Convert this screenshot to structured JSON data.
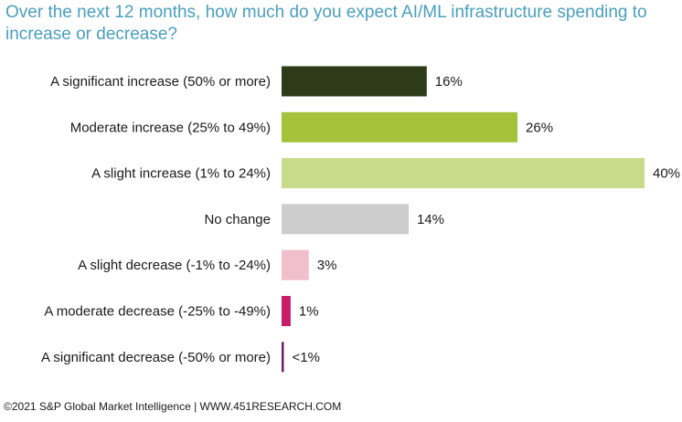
{
  "chart_data": {
    "type": "bar",
    "orientation": "horizontal",
    "title": "Over the next 12 months, how much do you expect AI/ML infrastructure spending to increase or decrease?",
    "xlabel": "",
    "ylabel": "",
    "xlim": [
      0,
      40
    ],
    "categories": [
      "A significant increase (50% or more)",
      "Moderate increase (25% to 49%)",
      "A slight increase (1% to 24%)",
      "No change",
      "A slight decrease (-1% to -24%)",
      "A moderate decrease (-25% to -49%)",
      "A significant decrease (-50% or more)"
    ],
    "values": [
      16,
      26,
      40,
      14,
      3,
      1,
      0.2
    ],
    "value_labels": [
      "16%",
      "26%",
      "40%",
      "14%",
      "3%",
      "1%",
      "<1%"
    ],
    "colors": [
      "#2e3b18",
      "#a4c23a",
      "#c8db8a",
      "#cdcdcd",
      "#f1bfcc",
      "#c81d6a",
      "#6e1f6a"
    ],
    "grid": false,
    "legend": "none"
  },
  "footer": {
    "text": "©2021 S&P Global Market Intelligence | WWW.451RESEARCH.COM"
  }
}
